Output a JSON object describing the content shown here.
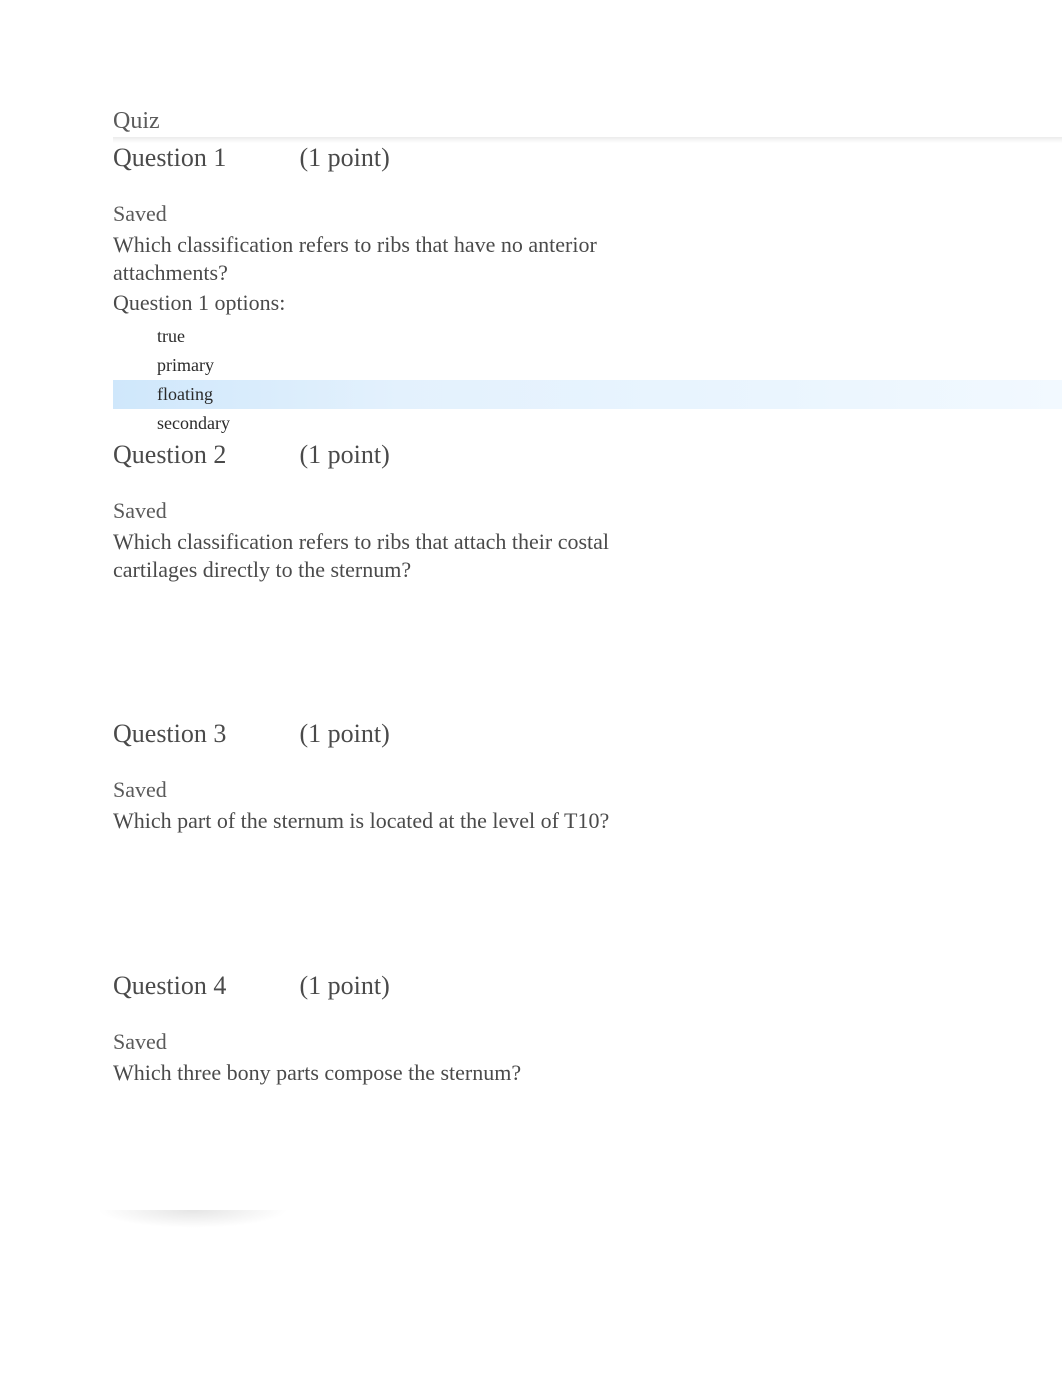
{
  "quiz_label": "Quiz",
  "questions": [
    {
      "label": "Question 1",
      "points": "(1 point)",
      "saved": "Saved",
      "text": "Which classification refers to ribs that have no anterior attachments?",
      "options_label": "Question 1 options:",
      "options": [
        {
          "text": "true",
          "highlighted": false
        },
        {
          "text": "primary",
          "highlighted": false
        },
        {
          "text": "floating",
          "highlighted": true
        },
        {
          "text": "secondary",
          "highlighted": false
        }
      ],
      "show_options": true
    },
    {
      "label": "Question 2",
      "points": "(1 point)",
      "saved": "Saved",
      "text": "Which classification refers to ribs that attach their costal cartilages directly to the sternum?",
      "options_label": "",
      "options": [],
      "show_options": false
    },
    {
      "label": "Question 3",
      "points": "(1 point)",
      "saved": "Saved",
      "text": "Which part of the sternum is located at the level of T10?",
      "options_label": "",
      "options": [],
      "show_options": false
    },
    {
      "label": "Question 4",
      "points": "(1 point)",
      "saved": "Saved",
      "text": "Which three bony parts compose the sternum?",
      "options_label": "",
      "options": [],
      "show_options": false
    }
  ],
  "colors": {
    "text_primary": "#4a4a4a",
    "text_secondary": "#5a5a5a",
    "highlight_start": "#cfe7fb",
    "highlight_end": "#f2f9ff",
    "background": "#ffffff"
  }
}
